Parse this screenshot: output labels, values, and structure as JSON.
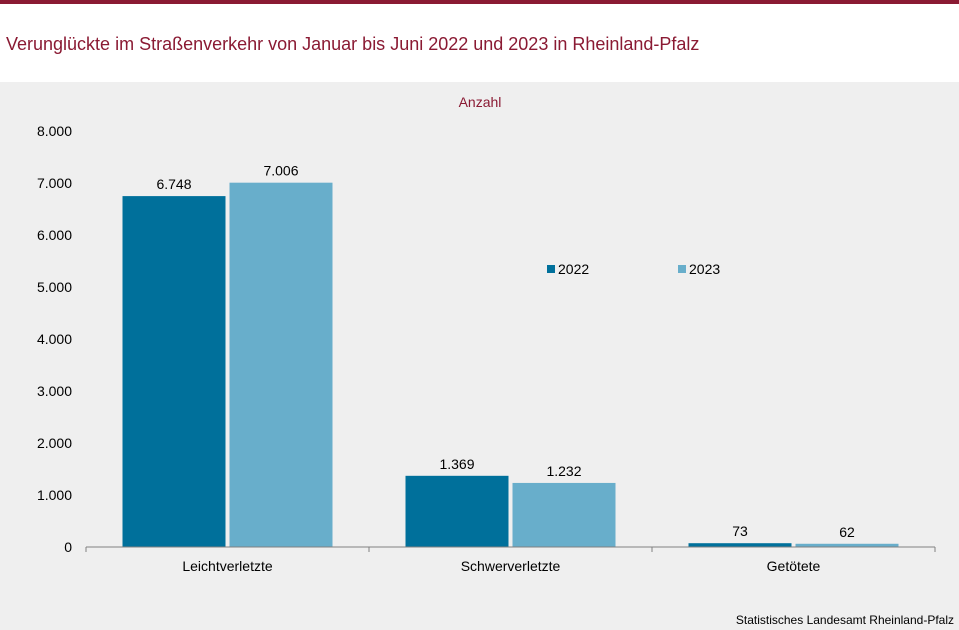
{
  "title": "Verunglückte im Straßenverkehr von Januar bis Juni 2022 und 2023 in Rheinland-Pfalz",
  "source": "Statistisches Landesamt Rheinland-Pfalz",
  "colors": {
    "accent": "#8a1a33",
    "series_2022": "#00709b",
    "series_2023": "#68aecb",
    "background": "#efefef"
  },
  "chart_data": {
    "type": "bar",
    "title": "Verunglückte im Straßenverkehr von Januar bis Juni 2022 und 2023 in Rheinland-Pfalz",
    "ylabel": "Anzahl",
    "xlabel": "",
    "ylim": [
      0,
      8000
    ],
    "yticks": [
      "0",
      "1.000",
      "2.000",
      "3.000",
      "4.000",
      "5.000",
      "6.000",
      "7.000",
      "8.000"
    ],
    "categories": [
      "Leichtverletzte",
      "Schwerverletzte",
      "Getötete"
    ],
    "series": [
      {
        "name": "2022",
        "values": [
          6748,
          1369,
          73
        ],
        "labels": [
          "6.748",
          "1.369",
          "73"
        ],
        "color": "#00709b"
      },
      {
        "name": "2023",
        "values": [
          7006,
          1232,
          62
        ],
        "labels": [
          "7.006",
          "1.232",
          "62"
        ],
        "color": "#68aecb"
      }
    ],
    "legend": "inside, right of center",
    "grid": false
  }
}
